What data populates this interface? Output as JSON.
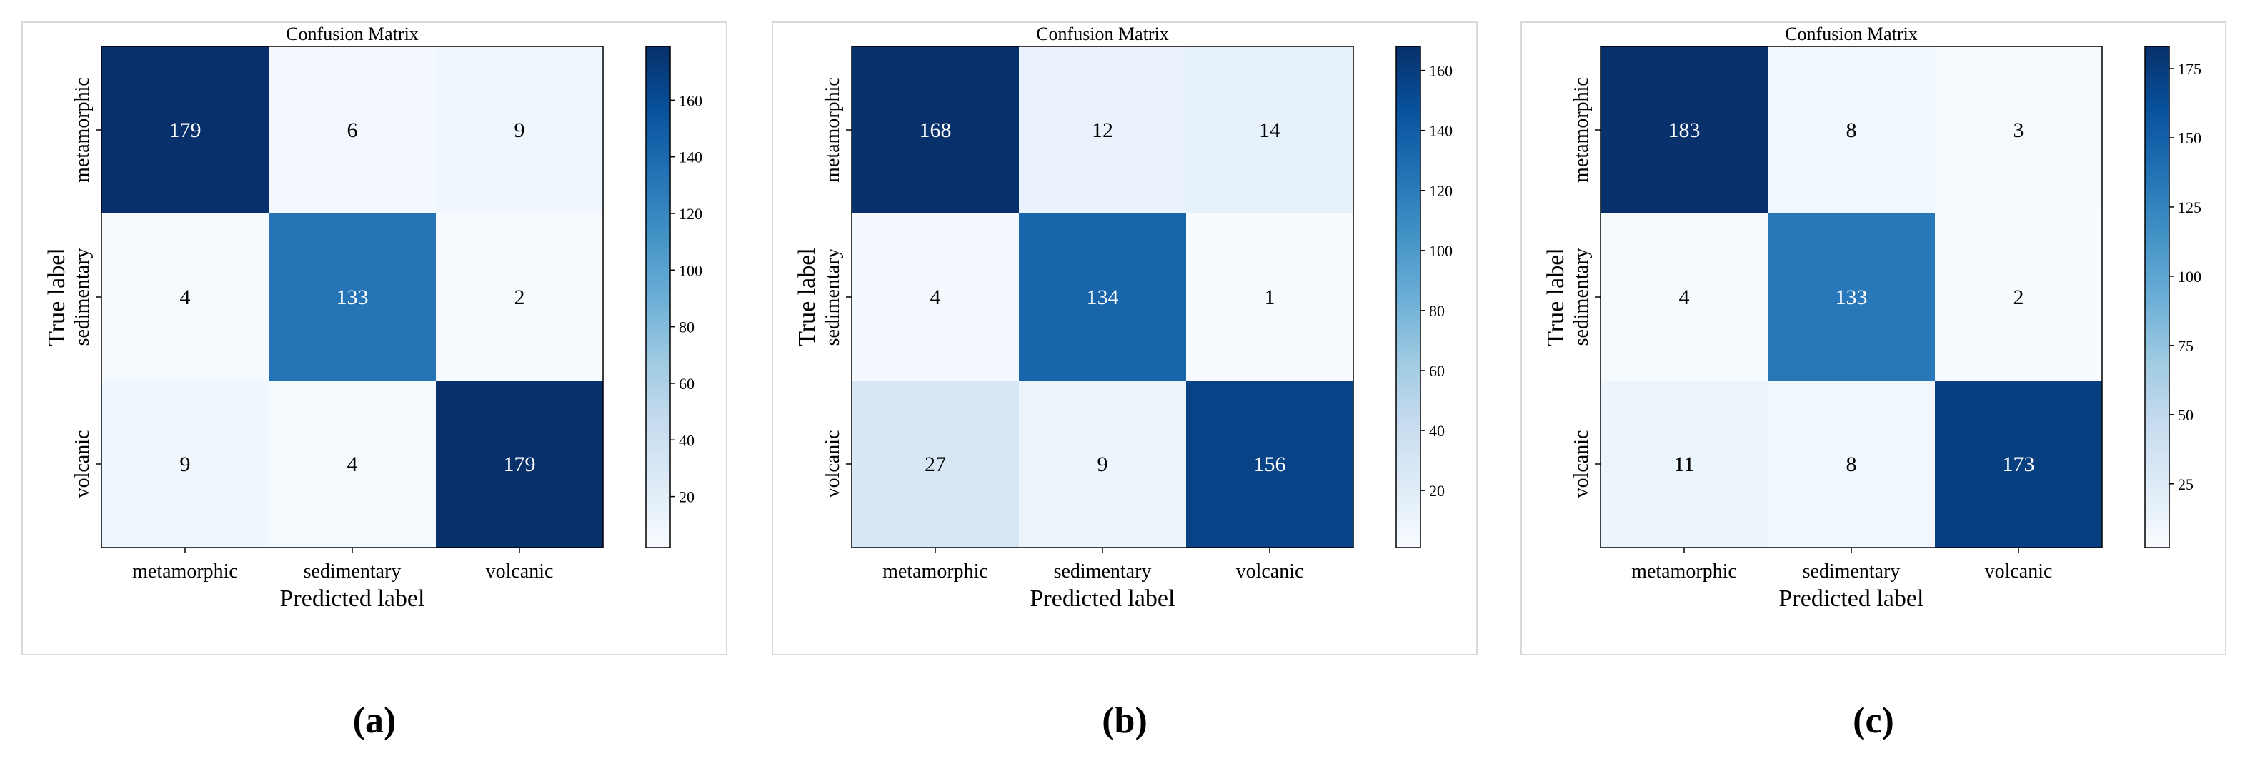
{
  "colorscale": [
    "#f7fbff",
    "#deebf7",
    "#c6dbef",
    "#9ecae1",
    "#6baed6",
    "#4292c6",
    "#2171b5",
    "#08519c",
    "#08306b"
  ],
  "chart_data": [
    {
      "type": "heatmap",
      "caption": "(a)",
      "title": "Confusion Matrix",
      "xlabel": "Predicted label",
      "ylabel": "True label",
      "x_categories": [
        "metamorphic",
        "sedimentary",
        "volcanic"
      ],
      "y_categories": [
        "metamorphic",
        "sedimentary",
        "volcanic"
      ],
      "matrix": [
        [
          179,
          6,
          9
        ],
        [
          4,
          133,
          2
        ],
        [
          9,
          4,
          179
        ]
      ],
      "colorbar_range": [
        2,
        179
      ],
      "colorbar_ticks": [
        20,
        40,
        60,
        80,
        100,
        120,
        140,
        160
      ]
    },
    {
      "type": "heatmap",
      "caption": "(b)",
      "title": "Confusion Matrix",
      "xlabel": "Predicted label",
      "ylabel": "True label",
      "x_categories": [
        "metamorphic",
        "sedimentary",
        "volcanic"
      ],
      "y_categories": [
        "metamorphic",
        "sedimentary",
        "volcanic"
      ],
      "matrix": [
        [
          168,
          12,
          14
        ],
        [
          4,
          134,
          1
        ],
        [
          27,
          9,
          156
        ]
      ],
      "colorbar_range": [
        1,
        168
      ],
      "colorbar_ticks": [
        20,
        40,
        60,
        80,
        100,
        120,
        140,
        160
      ]
    },
    {
      "type": "heatmap",
      "caption": "(c)",
      "title": "Confusion Matrix",
      "xlabel": "Predicted label",
      "ylabel": "True label",
      "x_categories": [
        "metamorphic",
        "sedimentary",
        "volcanic"
      ],
      "y_categories": [
        "metamorphic",
        "sedimentary",
        "volcanic"
      ],
      "matrix": [
        [
          183,
          8,
          3
        ],
        [
          4,
          133,
          2
        ],
        [
          11,
          8,
          173
        ]
      ],
      "colorbar_range": [
        2,
        183
      ],
      "colorbar_ticks": [
        25,
        50,
        75,
        100,
        125,
        150,
        175
      ]
    }
  ]
}
